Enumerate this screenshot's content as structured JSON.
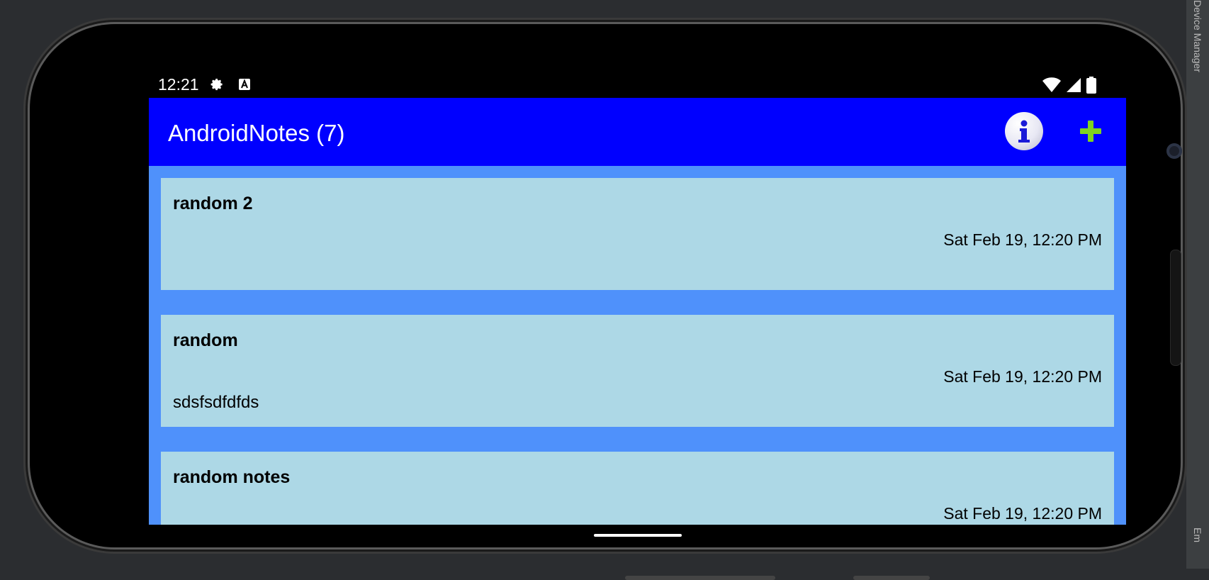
{
  "status_bar": {
    "time": "12:21",
    "left_icons": [
      "gear-icon",
      "keyboard-a-icon"
    ],
    "right_icons": [
      "wifi-icon",
      "signal-icon",
      "battery-icon"
    ]
  },
  "ide": {
    "side_tab_top": "Device Manager",
    "side_tab_bottom": "Em"
  },
  "app_bar": {
    "title": "AndroidNotes (7)",
    "info_icon": "info-icon",
    "add_icon": "add-icon",
    "colors": {
      "bar": "#0000ff",
      "add": "#7ed321"
    }
  },
  "notes": [
    {
      "title": "random 2",
      "date": "Sat Feb 19, 12:20 PM",
      "body": ""
    },
    {
      "title": "random",
      "date": "Sat Feb 19, 12:20 PM",
      "body": "sdsfsdfdfds"
    },
    {
      "title": "random notes",
      "date": "Sat Feb 19, 12:20 PM",
      "body": ""
    }
  ],
  "colors": {
    "list_background": "#4f91fb",
    "note_background": "#add8e6"
  }
}
